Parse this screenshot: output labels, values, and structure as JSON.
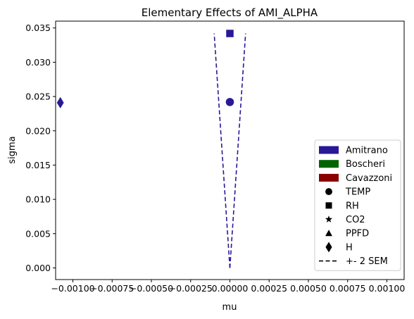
{
  "chart_data": {
    "type": "scatter",
    "title": "Elementary Effects of AMI_ALPHA",
    "xlabel": "mu",
    "ylabel": "sigma",
    "xlim": [
      -0.00111,
      0.00111
    ],
    "ylim": [
      -0.0017,
      0.036
    ],
    "x_ticks": [
      -0.001,
      -0.00075,
      -0.0005,
      -0.00025,
      0.0,
      0.00025,
      0.0005,
      0.00075,
      0.001
    ],
    "x_tick_labels": [
      "−0.00100",
      "−0.00075",
      "−0.00050",
      "−0.00025",
      "0.00000",
      "0.00025",
      "0.00050",
      "0.00075",
      "0.00100"
    ],
    "y_ticks": [
      0.0,
      0.005,
      0.01,
      0.015,
      0.02,
      0.025,
      0.03,
      0.035
    ],
    "y_tick_labels": [
      "0.000",
      "0.005",
      "0.010",
      "0.015",
      "0.020",
      "0.025",
      "0.030",
      "0.035"
    ],
    "grid": false,
    "legend_position": "lower-right",
    "points": [
      {
        "label": "TEMP",
        "group": "Amitrano",
        "marker": "circle",
        "x": 0.0,
        "y": 0.0242
      },
      {
        "label": "RH",
        "group": "Amitrano",
        "marker": "square",
        "x": 0.0,
        "y": 0.0342
      },
      {
        "label": "H",
        "group": "Amitrano",
        "marker": "diamond",
        "x": -0.00108,
        "y": 0.0241
      }
    ],
    "sem_lines": [
      {
        "name": "+- 2 SEM",
        "group": "Amitrano",
        "x": [
          0.0,
          -0.0001
        ],
        "y": [
          0.0,
          0.0342
        ]
      },
      {
        "name": "+- 2 SEM",
        "group": "Amitrano",
        "x": [
          0.0,
          0.0001
        ],
        "y": [
          0.0,
          0.0342
        ]
      }
    ],
    "legend": {
      "models": [
        {
          "label": "Amitrano",
          "color": "#281996"
        },
        {
          "label": "Boscheri",
          "color": "#006400"
        },
        {
          "label": "Cavazzoni",
          "color": "#8b0000"
        }
      ],
      "markers": [
        {
          "label": "TEMP",
          "marker": "circle"
        },
        {
          "label": "RH",
          "marker": "square"
        },
        {
          "label": "CO2",
          "marker": "star"
        },
        {
          "label": "PPFD",
          "marker": "triangle"
        },
        {
          "label": "H",
          "marker": "diamond"
        }
      ],
      "lines": [
        {
          "label": "+- 2 SEM",
          "style": "dashed"
        }
      ]
    },
    "colors": {
      "Amitrano": "#281996",
      "Boscheri": "#006400",
      "Cavazzoni": "#8b0000"
    }
  }
}
